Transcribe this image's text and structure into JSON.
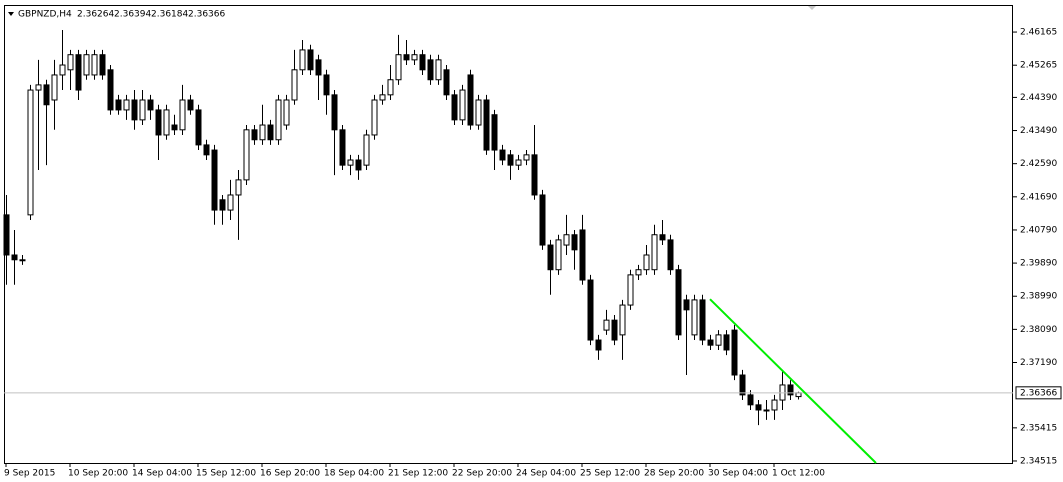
{
  "chart_data": {
    "type": "candlestick",
    "title": "GBPNZD,H4",
    "up_color": "#ffffff",
    "down_color": "#000000",
    "categories": [
      "9 Sep 2015",
      null,
      null,
      null,
      null,
      null,
      null,
      null,
      "10 Sep 20:00",
      null,
      null,
      null,
      null,
      null,
      null,
      null,
      "14 Sep 04:00",
      null,
      null,
      null,
      null,
      null,
      null,
      null,
      "15 Sep 12:00",
      null,
      null,
      null,
      null,
      null,
      null,
      null,
      "16 Sep 20:00",
      null,
      null,
      null,
      null,
      null,
      null,
      null,
      "18 Sep 04:00",
      null,
      null,
      null,
      null,
      null,
      null,
      null,
      "21 Sep 12:00",
      null,
      null,
      null,
      null,
      null,
      null,
      null,
      "22 Sep 20:00",
      null,
      null,
      null,
      null,
      null,
      null,
      null,
      "24 Sep 04:00",
      null,
      null,
      null,
      null,
      null,
      null,
      null,
      "25 Sep 12:00",
      null,
      null,
      null,
      null,
      null,
      null,
      null,
      "28 Sep 20:00",
      null,
      null,
      null,
      null,
      null,
      null,
      null,
      "30 Sep 04:00",
      null,
      null,
      null,
      null,
      null,
      null,
      null,
      "1 Oct 12:00",
      null,
      null,
      null
    ],
    "open": [
      2.412,
      2.4011,
      2.3998,
      2.412,
      2.4459,
      2.4473,
      2.4432,
      2.45,
      2.4514,
      2.4555,
      2.45,
      2.45,
      2.4555,
      2.4514,
      2.4432,
      2.4405,
      2.4432,
      2.4378,
      2.4432,
      2.4405,
      2.4337,
      2.4364,
      2.4351,
      2.4432,
      2.4405,
      2.431,
      2.4296,
      2.4161,
      2.4133,
      2.4174,
      2.4215,
      2.4351,
      2.4324,
      2.4364,
      2.4324,
      2.4364,
      2.4432,
      2.4514,
      2.4568,
      2.4541,
      2.45,
      2.4446,
      2.4351,
      2.4255,
      2.4269,
      2.4255,
      2.4337,
      2.4432,
      2.4446,
      2.4487,
      2.4555,
      2.4541,
      2.4555,
      2.4541,
      2.4487,
      2.4514,
      2.4446,
      2.4378,
      2.45,
      2.4364,
      2.4432,
      2.4392,
      2.4296,
      2.4283,
      2.4255,
      2.4269,
      2.4283,
      2.4174,
      2.4038,
      2.3971,
      2.4038,
      2.4066,
      2.4079,
      2.3943,
      2.378,
      2.3807,
      2.3834,
      2.3794,
      2.3875,
      2.3957,
      2.3971,
      2.3971,
      2.4066,
      2.4052,
      2.3971,
      2.3889,
      2.3794,
      2.3889,
      2.378,
      2.3766,
      2.3794,
      2.3807,
      2.3685,
      2.3631,
      2.3604,
      2.359,
      2.359,
      2.3617,
      2.3658,
      2.36264
    ],
    "high": [
      2.4174,
      2.4079,
      2.4011,
      2.4473,
      2.4541,
      2.4487,
      2.4541,
      2.4622,
      2.4568,
      2.4568,
      2.4568,
      2.4568,
      2.4568,
      2.4527,
      2.4446,
      2.4446,
      2.4459,
      2.4459,
      2.4446,
      2.4419,
      2.4419,
      2.4392,
      2.4473,
      2.4446,
      2.4419,
      2.4324,
      2.431,
      2.4174,
      2.4215,
      2.4242,
      2.4364,
      2.4364,
      2.4419,
      2.4378,
      2.4446,
      2.4446,
      2.4568,
      2.4595,
      2.4582,
      2.4555,
      2.4514,
      2.4459,
      2.4364,
      2.4283,
      2.4283,
      2.4351,
      2.4446,
      2.4473,
      2.4527,
      2.4609,
      2.4595,
      2.4568,
      2.4568,
      2.4555,
      2.4555,
      2.4527,
      2.4459,
      2.4473,
      2.4514,
      2.4446,
      2.4446,
      2.4405,
      2.431,
      2.4296,
      2.4283,
      2.4296,
      2.4364,
      2.4188,
      2.4052,
      2.4066,
      2.412,
      2.4079,
      2.412,
      2.3957,
      2.3794,
      2.3862,
      2.3848,
      2.3889,
      2.3971,
      2.3984,
      2.4038,
      2.4093,
      2.4106,
      2.4066,
      2.3984,
      2.3903,
      2.3903,
      2.3903,
      2.3794,
      2.3807,
      2.3807,
      2.3821,
      2.3699,
      2.3644,
      2.3617,
      2.3617,
      2.3631,
      2.3699,
      2.3671,
      2.36394
    ],
    "low": [
      2.393,
      2.393,
      2.3984,
      2.4106,
      2.4242,
      2.4255,
      2.4351,
      2.4459,
      2.4459,
      2.4432,
      2.4487,
      2.4487,
      2.4487,
      2.4392,
      2.4392,
      2.4378,
      2.4351,
      2.4364,
      2.4378,
      2.4269,
      2.4324,
      2.4337,
      2.4337,
      2.4392,
      2.4296,
      2.4269,
      2.4093,
      2.4093,
      2.4106,
      2.4052,
      2.4201,
      2.431,
      2.431,
      2.431,
      2.431,
      2.4351,
      2.4419,
      2.45,
      2.45,
      2.4432,
      2.4392,
      2.4228,
      2.4242,
      2.4228,
      2.4215,
      2.4242,
      2.4324,
      2.4419,
      2.4432,
      2.4473,
      2.4527,
      2.4527,
      2.45,
      2.4473,
      2.4473,
      2.4432,
      2.4364,
      2.4364,
      2.4351,
      2.4351,
      2.4283,
      2.4242,
      2.4255,
      2.4215,
      2.4242,
      2.4255,
      2.4161,
      2.4025,
      2.3903,
      2.3957,
      2.4011,
      2.3971,
      2.393,
      2.3766,
      2.3726,
      2.3794,
      2.3766,
      2.3726,
      2.3862,
      2.3943,
      2.3957,
      2.3957,
      2.4038,
      2.3957,
      2.378,
      2.3685,
      2.378,
      2.3766,
      2.3753,
      2.3753,
      2.3739,
      2.3671,
      2.3617,
      2.359,
      2.3549,
      2.3563,
      2.3563,
      2.359,
      2.3617,
      2.36184
    ],
    "close": [
      2.4011,
      2.3998,
      2.3998,
      2.4459,
      2.4473,
      2.4419,
      2.45,
      2.4527,
      2.4555,
      2.4459,
      2.4555,
      2.4555,
      2.45,
      2.4405,
      2.4405,
      2.4432,
      2.4378,
      2.4432,
      2.4405,
      2.4337,
      2.4405,
      2.4351,
      2.4432,
      2.4405,
      2.431,
      2.4283,
      2.4133,
      2.4133,
      2.4174,
      2.4215,
      2.4351,
      2.4324,
      2.4364,
      2.4324,
      2.4432,
      2.4432,
      2.4514,
      2.4568,
      2.4514,
      2.45,
      2.4446,
      2.4351,
      2.4255,
      2.4269,
      2.4242,
      2.4337,
      2.4432,
      2.4446,
      2.4487,
      2.4555,
      2.4541,
      2.4555,
      2.4514,
      2.4487,
      2.4541,
      2.4446,
      2.4378,
      2.4459,
      2.4364,
      2.4432,
      2.4296,
      2.4296,
      2.4269,
      2.4255,
      2.4269,
      2.4283,
      2.4174,
      2.4038,
      2.3971,
      2.4052,
      2.4066,
      2.4025,
      2.3943,
      2.378,
      2.3753,
      2.3834,
      2.378,
      2.3875,
      2.3957,
      2.3971,
      2.4011,
      2.4066,
      2.4052,
      2.3971,
      2.3794,
      2.3862,
      2.3889,
      2.378,
      2.3766,
      2.3794,
      2.3753,
      2.3685,
      2.3631,
      2.3604,
      2.359,
      2.359,
      2.3617,
      2.3658,
      2.3631,
      2.36366
    ],
    "ylim": [
      2.3446,
      2.469
    ],
    "yticks": [
      2.46165,
      2.45265,
      {
        "value": 2.4439,
        "label": "2.44390"
      },
      {
        "value": 2.4349,
        "label": "2.43490"
      },
      {
        "value": 2.4259,
        "label": "2.42590"
      },
      {
        "value": 2.4169,
        "label": "2.41690"
      },
      {
        "value": 2.4079,
        "label": "2.40790"
      },
      {
        "value": 2.3989,
        "label": "2.39890"
      },
      {
        "value": 2.3899,
        "label": "2.38990"
      },
      {
        "value": 2.3809,
        "label": "2.38090"
      },
      {
        "value": 2.3719,
        "label": "2.37190"
      },
      2.35415,
      2.34515
    ],
    "trendline": {
      "color": "#00ee00",
      "x": [
        88,
        108.75
      ],
      "y": [
        2.3891,
        2.3446
      ]
    }
  }
}
